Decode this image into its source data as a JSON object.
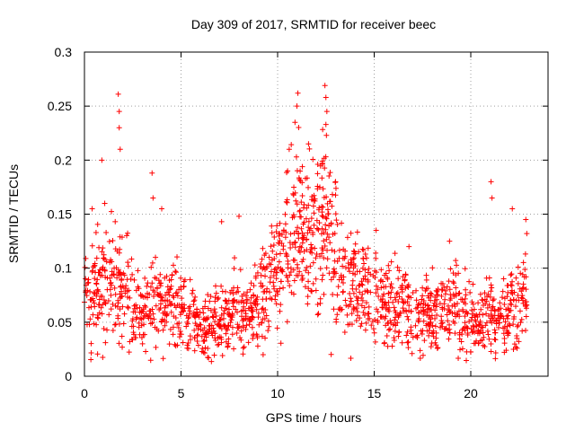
{
  "chart_data": {
    "type": "scatter",
    "title": "Day 309 of 2017, SRMTID for receiver beec",
    "xlabel": "GPS time / hours",
    "ylabel": "SRMTID / TECUs",
    "xlim": [
      0,
      24
    ],
    "ylim": [
      0,
      0.3
    ],
    "xticks": [
      0,
      5,
      10,
      15,
      20
    ],
    "xtick_labels": [
      "0",
      "5",
      "10",
      "15",
      "20"
    ],
    "yticks": [
      0,
      0.05,
      0.1,
      0.15,
      0.2,
      0.25,
      0.3
    ],
    "ytick_labels": [
      "0",
      "0.05",
      "0.1",
      "0.15",
      "0.2",
      "0.25",
      "0.3"
    ],
    "grid": true,
    "marker": "+",
    "series": [
      {
        "name": "SRMTID",
        "color": "#ff0000",
        "trend": [
          {
            "x": 0.0,
            "y": 0.072
          },
          {
            "x": 0.5,
            "y": 0.075
          },
          {
            "x": 1.0,
            "y": 0.082
          },
          {
            "x": 1.5,
            "y": 0.092
          },
          {
            "x": 2.0,
            "y": 0.09
          },
          {
            "x": 2.5,
            "y": 0.065
          },
          {
            "x": 3.0,
            "y": 0.058
          },
          {
            "x": 3.5,
            "y": 0.068
          },
          {
            "x": 4.0,
            "y": 0.07
          },
          {
            "x": 4.5,
            "y": 0.068
          },
          {
            "x": 5.0,
            "y": 0.062
          },
          {
            "x": 5.5,
            "y": 0.055
          },
          {
            "x": 6.0,
            "y": 0.045
          },
          {
            "x": 6.5,
            "y": 0.042
          },
          {
            "x": 7.0,
            "y": 0.05
          },
          {
            "x": 7.5,
            "y": 0.055
          },
          {
            "x": 8.0,
            "y": 0.058
          },
          {
            "x": 8.5,
            "y": 0.055
          },
          {
            "x": 9.0,
            "y": 0.065
          },
          {
            "x": 9.5,
            "y": 0.085
          },
          {
            "x": 10.0,
            "y": 0.1
          },
          {
            "x": 10.5,
            "y": 0.12
          },
          {
            "x": 11.0,
            "y": 0.14
          },
          {
            "x": 11.5,
            "y": 0.125
          },
          {
            "x": 12.0,
            "y": 0.13
          },
          {
            "x": 12.5,
            "y": 0.14
          },
          {
            "x": 13.0,
            "y": 0.115
          },
          {
            "x": 13.5,
            "y": 0.09
          },
          {
            "x": 14.0,
            "y": 0.08
          },
          {
            "x": 14.5,
            "y": 0.085
          },
          {
            "x": 15.0,
            "y": 0.075
          },
          {
            "x": 15.5,
            "y": 0.07
          },
          {
            "x": 16.0,
            "y": 0.068
          },
          {
            "x": 16.5,
            "y": 0.065
          },
          {
            "x": 17.0,
            "y": 0.06
          },
          {
            "x": 17.5,
            "y": 0.06
          },
          {
            "x": 18.0,
            "y": 0.058
          },
          {
            "x": 18.5,
            "y": 0.06
          },
          {
            "x": 19.0,
            "y": 0.062
          },
          {
            "x": 19.5,
            "y": 0.058
          },
          {
            "x": 20.0,
            "y": 0.055
          },
          {
            "x": 20.5,
            "y": 0.05
          },
          {
            "x": 21.0,
            "y": 0.052
          },
          {
            "x": 21.5,
            "y": 0.055
          },
          {
            "x": 22.0,
            "y": 0.06
          },
          {
            "x": 22.5,
            "y": 0.065
          },
          {
            "x": 22.9,
            "y": 0.07
          }
        ],
        "spikes": [
          {
            "x": 0.4,
            "y": 0.155
          },
          {
            "x": 0.9,
            "y": 0.2
          },
          {
            "x": 1.05,
            "y": 0.16
          },
          {
            "x": 1.75,
            "y": 0.261
          },
          {
            "x": 1.8,
            "y": 0.245
          },
          {
            "x": 1.8,
            "y": 0.23
          },
          {
            "x": 1.85,
            "y": 0.21
          },
          {
            "x": 3.5,
            "y": 0.188
          },
          {
            "x": 3.55,
            "y": 0.165
          },
          {
            "x": 4.0,
            "y": 0.155
          },
          {
            "x": 7.1,
            "y": 0.143
          },
          {
            "x": 8.0,
            "y": 0.148
          },
          {
            "x": 10.6,
            "y": 0.21
          },
          {
            "x": 10.9,
            "y": 0.235
          },
          {
            "x": 11.05,
            "y": 0.262
          },
          {
            "x": 11.0,
            "y": 0.25
          },
          {
            "x": 11.6,
            "y": 0.215
          },
          {
            "x": 12.45,
            "y": 0.269
          },
          {
            "x": 12.5,
            "y": 0.258
          },
          {
            "x": 12.55,
            "y": 0.245
          },
          {
            "x": 12.5,
            "y": 0.233
          },
          {
            "x": 13.0,
            "y": 0.18
          },
          {
            "x": 15.1,
            "y": 0.135
          },
          {
            "x": 16.8,
            "y": 0.12
          },
          {
            "x": 18.9,
            "y": 0.125
          },
          {
            "x": 21.05,
            "y": 0.18
          },
          {
            "x": 21.1,
            "y": 0.165
          },
          {
            "x": 22.15,
            "y": 0.155
          },
          {
            "x": 22.85,
            "y": 0.145
          },
          {
            "x": 22.9,
            "y": 0.132
          }
        ]
      }
    ]
  }
}
